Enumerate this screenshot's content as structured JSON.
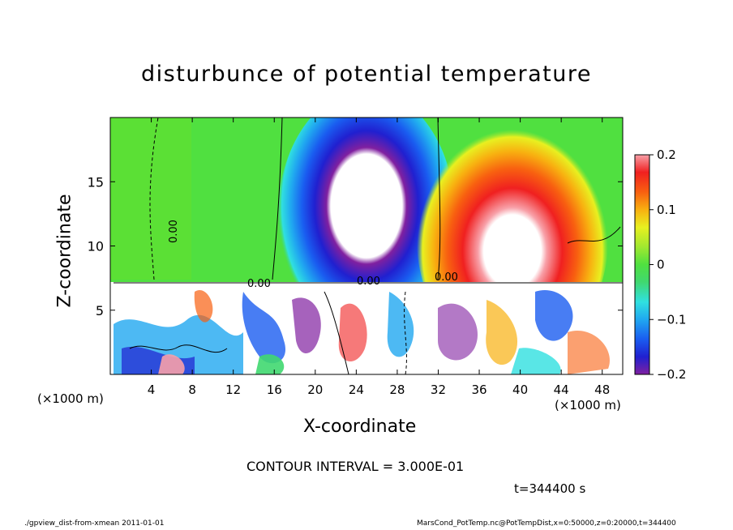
{
  "chart_data": {
    "type": "heatmap",
    "title": "disturbunce of potential temperature",
    "xlabel": "X-coordinate",
    "ylabel": "Z-coordinate",
    "x_unit_label": "(×1000 m)",
    "xlim": [
      0,
      50
    ],
    "ylim": [
      0,
      20
    ],
    "x_ticks": [
      "4",
      "8",
      "12",
      "16",
      "20",
      "24",
      "28",
      "32",
      "36",
      "40",
      "44",
      "48"
    ],
    "y_ticks": [
      "5",
      "10",
      "15"
    ],
    "colorbar": {
      "range": [
        -0.2,
        0.2
      ],
      "ticks": [
        "0.2",
        "0.1",
        "0",
        "−0.1",
        "−0.2"
      ]
    },
    "contour_labels": [
      "0.00",
      "0.00",
      "0.00",
      "0.00"
    ],
    "contour_interval_text": "CONTOUR INTERVAL = 3.000E-01",
    "time_text": "t=344400 s",
    "features": [
      {
        "description": "negative anomaly plume",
        "x_center": 26,
        "z_range": [
          7,
          19
        ],
        "value_min": -0.2
      },
      {
        "description": "positive anomaly plume",
        "x_center": 39,
        "z_range": [
          7,
          18
        ],
        "value_max": 0.2
      }
    ]
  },
  "footer": {
    "left": "./gpview_dist-from-xmean  2011-01-01",
    "right": "MarsCond_PotTemp.nc@PotTempDist,x=0:50000,z=0:20000,t=344400"
  },
  "colors": {
    "cmap": [
      "#8020a0",
      "#2020d0",
      "#1a5cf0",
      "#20a8f0",
      "#30e0e0",
      "#40d870",
      "#50e040",
      "#a0e830",
      "#e8f020",
      "#f8b010",
      "#f86010",
      "#f02020",
      "#f8a0a8"
    ]
  }
}
